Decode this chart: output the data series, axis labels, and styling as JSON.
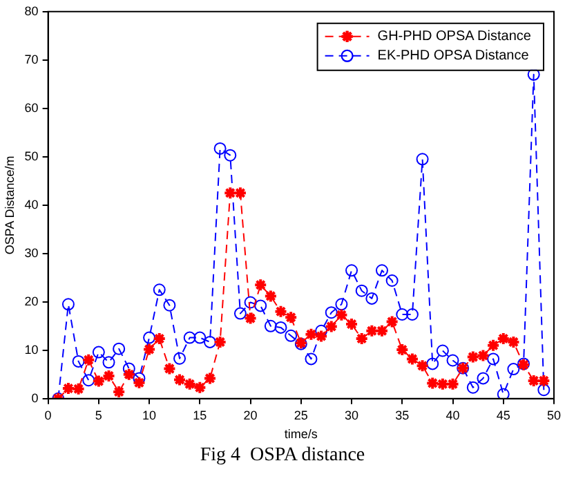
{
  "chart_data": {
    "type": "line",
    "xlabel": "time/s",
    "ylabel": "OSPA Distance/m",
    "annotations": [
      "Fig 4  OSPA distance"
    ],
    "x": [
      1,
      2,
      3,
      4,
      5,
      6,
      7,
      8,
      9,
      10,
      11,
      12,
      13,
      14,
      15,
      16,
      17,
      18,
      19,
      20,
      21,
      22,
      23,
      24,
      25,
      26,
      27,
      28,
      29,
      30,
      31,
      32,
      33,
      34,
      35,
      36,
      37,
      38,
      39,
      40,
      41,
      42,
      43,
      44,
      45,
      46,
      47,
      48,
      49
    ],
    "series": [
      {
        "name": "GH-PHD OPSA Distance",
        "color": "#ff0000",
        "marker": "cross",
        "values": [
          0,
          2.1,
          2.0,
          8.0,
          3.6,
          4.7,
          1.4,
          5.0,
          3.3,
          10.2,
          12.4,
          6.2,
          3.9,
          3.0,
          2.3,
          4.2,
          11.7,
          42.5,
          42.5,
          16.6,
          23.5,
          21.2,
          18.0,
          16.8,
          11.5,
          13.3,
          12.9,
          14.9,
          17.3,
          15.4,
          12.4,
          14.0,
          14.0,
          15.9,
          10.1,
          8.2,
          6.8,
          3.2,
          3.0,
          3.0,
          6.3,
          8.6,
          8.9,
          11.0,
          12.4,
          11.7,
          7.0,
          3.7,
          3.7
        ]
      },
      {
        "name": "EK-PHD OPSA Distance",
        "color": "#0000ff",
        "marker": "circle",
        "values": [
          0,
          19.5,
          7.7,
          3.8,
          9.6,
          7.5,
          10.3,
          6.2,
          4.2,
          12.6,
          22.5,
          19.3,
          8.3,
          12.6,
          12.6,
          11.7,
          51.7,
          50.3,
          17.6,
          19.9,
          19.2,
          15.0,
          14.7,
          13.0,
          11.3,
          8.2,
          14.0,
          17.8,
          19.5,
          26.5,
          22.3,
          20.7,
          26.5,
          24.4,
          17.4,
          17.4,
          49.5,
          7.2,
          9.9,
          7.9,
          6.3,
          2.3,
          4.2,
          8.2,
          0.9,
          6.1,
          7.2,
          67,
          1.8
        ]
      }
    ],
    "xlim": [
      0,
      50
    ],
    "xticks": [
      0,
      5,
      10,
      15,
      20,
      25,
      30,
      35,
      40,
      45,
      50
    ],
    "ylim": [
      0,
      80
    ],
    "yticks": [
      0,
      10,
      20,
      30,
      40,
      50,
      60,
      70,
      80
    ],
    "grid": false,
    "legend": "top right",
    "line_style": "dashed"
  }
}
